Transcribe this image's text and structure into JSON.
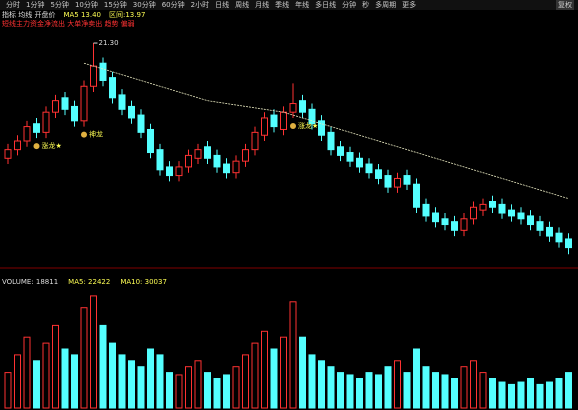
{
  "toolbar": {
    "items": [
      "分时",
      "1分钟",
      "5分钟",
      "10分钟",
      "15分钟",
      "30分钟",
      "60分钟",
      "2小时",
      "日线",
      "周线",
      "月线",
      "季线",
      "年线",
      "多日线",
      "分钟",
      "秒",
      "多周期",
      "更多"
    ],
    "right": "复权"
  },
  "header": {
    "items": [
      "指标 均线 开盘价",
      "MA5 13.40",
      "区间:13.97"
    ],
    "alert": "短线主力资金净流出 大单净卖出 趋势 偏弱"
  },
  "volume_header": {
    "items": [
      "VOLUME: 18811",
      "MA5: 22422",
      "MA10: 30037"
    ]
  },
  "chart_data": [
    {
      "type": "candlestick",
      "open": [
        17.3,
        17.6,
        17.9,
        18.5,
        18.2,
        18.9,
        19.4,
        19.1,
        18.6,
        19.8,
        20.6,
        20.1,
        19.5,
        19.1,
        18.8,
        18.3,
        17.6,
        17.0,
        16.7,
        17.0,
        17.3,
        17.7,
        17.4,
        17.1,
        16.8,
        17.2,
        17.6,
        18.1,
        18.8,
        18.3,
        18.9,
        19.3,
        19.0,
        18.6,
        18.2,
        17.7,
        17.5,
        17.3,
        17.1,
        16.9,
        16.7,
        16.3,
        16.7,
        16.4,
        15.7,
        15.4,
        15.2,
        15.1,
        14.8,
        15.2,
        15.5,
        15.8,
        15.7,
        15.5,
        15.4,
        15.3,
        15.1,
        14.9,
        14.7,
        14.5
      ],
      "high": [
        17.8,
        18.1,
        18.6,
        18.7,
        19.1,
        19.5,
        19.6,
        19.3,
        20.0,
        21.3,
        20.8,
        20.3,
        19.7,
        19.3,
        19.0,
        18.5,
        17.8,
        17.2,
        17.2,
        17.6,
        17.8,
        17.9,
        17.6,
        17.3,
        17.4,
        17.8,
        18.4,
        18.9,
        19.0,
        19.1,
        19.9,
        19.5,
        19.2,
        18.8,
        18.4,
        17.9,
        17.7,
        17.5,
        17.3,
        17.1,
        16.9,
        16.8,
        16.9,
        16.6,
        15.9,
        15.6,
        15.4,
        15.3,
        15.4,
        15.8,
        15.9,
        16.0,
        15.9,
        15.7,
        15.6,
        15.5,
        15.3,
        15.1,
        14.9,
        14.7
      ],
      "low": [
        17.1,
        17.4,
        17.7,
        18.0,
        18.0,
        18.7,
        18.8,
        18.4,
        18.4,
        19.6,
        19.8,
        19.2,
        18.8,
        18.5,
        18.0,
        17.3,
        16.7,
        16.5,
        16.5,
        16.8,
        17.1,
        17.1,
        16.8,
        16.6,
        16.6,
        17.0,
        17.4,
        17.9,
        18.2,
        18.1,
        18.7,
        18.7,
        18.3,
        17.9,
        17.4,
        17.2,
        17.0,
        16.8,
        16.6,
        16.4,
        16.1,
        16.1,
        16.2,
        15.4,
        15.1,
        14.9,
        14.8,
        14.6,
        14.6,
        15.0,
        15.3,
        15.4,
        15.2,
        15.1,
        15.0,
        14.8,
        14.6,
        14.4,
        14.2,
        13.97
      ],
      "close": [
        17.6,
        17.9,
        18.4,
        18.2,
        18.9,
        19.3,
        19.0,
        18.6,
        19.8,
        20.5,
        20.0,
        19.4,
        19.0,
        18.7,
        18.2,
        17.5,
        16.9,
        16.7,
        17.0,
        17.4,
        17.6,
        17.3,
        17.0,
        16.8,
        17.2,
        17.6,
        18.2,
        18.7,
        18.4,
        18.9,
        19.2,
        18.9,
        18.5,
        18.1,
        17.6,
        17.4,
        17.2,
        17.0,
        16.8,
        16.6,
        16.3,
        16.6,
        16.4,
        15.6,
        15.3,
        15.1,
        15.0,
        14.8,
        15.2,
        15.6,
        15.7,
        15.6,
        15.4,
        15.3,
        15.2,
        15.0,
        14.8,
        14.6,
        14.4,
        14.2
      ],
      "ma": [
        null,
        null,
        null,
        null,
        null,
        null,
        null,
        null,
        20.6,
        20.5,
        20.4,
        20.3,
        20.2,
        20.1,
        20.0,
        19.9,
        19.8,
        19.7,
        19.6,
        19.5,
        19.4,
        19.3,
        19.25,
        19.2,
        19.15,
        19.1,
        19.05,
        19.0,
        18.95,
        18.9,
        18.8,
        18.7,
        18.6,
        18.5,
        18.4,
        18.3,
        18.2,
        18.1,
        18.0,
        17.9,
        17.8,
        17.7,
        17.6,
        17.5,
        17.4,
        17.3,
        17.2,
        17.1,
        17.0,
        16.9,
        16.8,
        16.7,
        16.6,
        16.5,
        16.4,
        16.3,
        16.2,
        16.1,
        16.0,
        15.9
      ],
      "peak_label": "21.30",
      "signals": [
        {
          "text": "涨龙★",
          "at": 3
        },
        {
          "text": "神龙",
          "at": 8
        },
        {
          "text": "涨龙★",
          "at": 30
        }
      ],
      "up_color": "#ff3232",
      "down_color": "#54ffff",
      "ma_color": "#e8e8c0",
      "ylim": [
        13.7,
        22.1
      ]
    },
    {
      "type": "bar",
      "values": [
        30,
        45,
        60,
        40,
        55,
        70,
        50,
        45,
        85,
        95,
        70,
        55,
        45,
        40,
        35,
        50,
        45,
        30,
        28,
        35,
        40,
        30,
        25,
        28,
        35,
        45,
        55,
        65,
        50,
        60,
        90,
        60,
        45,
        40,
        35,
        30,
        28,
        25,
        30,
        28,
        35,
        40,
        30,
        50,
        35,
        30,
        28,
        25,
        35,
        40,
        30,
        25,
        22,
        20,
        22,
        25,
        20,
        22,
        25,
        30
      ],
      "up_color": "#ff3232",
      "down_color": "#54ffff",
      "ylim": [
        0,
        100
      ]
    }
  ]
}
